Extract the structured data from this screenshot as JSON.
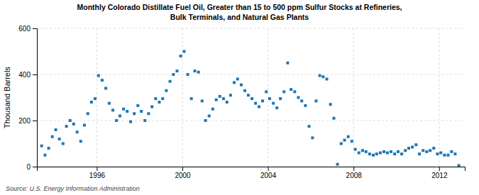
{
  "chart_data": {
    "type": "scatter",
    "title": [
      "Monthly Colorado Distillate Fuel Oil, Greater than 15 to 500 ppm Sulfur Stocks at Refineries,",
      "Bulk Terminals, and Natural Gas Plants"
    ],
    "y_label": "Thousand Barrels",
    "annotations": [
      "Source: U.S. Energy Information Administration"
    ],
    "marker": "square",
    "grid": true,
    "xlim": [
      1993.2,
      2013.2
    ],
    "xticks": [
      1996,
      2000,
      2004,
      2008,
      2012
    ],
    "ylim": [
      0,
      600
    ],
    "yticks": [
      0,
      200,
      400,
      600
    ],
    "x": [
      1993.42,
      1993.58,
      1993.75,
      1993.92,
      1994.08,
      1994.25,
      1994.42,
      1994.58,
      1994.75,
      1994.92,
      1995.08,
      1995.25,
      1995.42,
      1995.58,
      1995.75,
      1995.92,
      1996.08,
      1996.25,
      1996.42,
      1996.58,
      1996.75,
      1996.92,
      1997.08,
      1997.25,
      1997.42,
      1997.58,
      1997.75,
      1997.92,
      1998.08,
      1998.25,
      1998.42,
      1998.58,
      1998.75,
      1998.92,
      1999.08,
      1999.25,
      1999.42,
      1999.58,
      1999.75,
      1999.92,
      2000.08,
      2000.25,
      2000.42,
      2000.58,
      2000.75,
      2000.92,
      2001.08,
      2001.25,
      2001.42,
      2001.58,
      2001.75,
      2001.92,
      2002.08,
      2002.25,
      2002.42,
      2002.58,
      2002.75,
      2002.92,
      2003.08,
      2003.25,
      2003.42,
      2003.58,
      2003.75,
      2003.92,
      2004.08,
      2004.25,
      2004.42,
      2004.58,
      2004.75,
      2004.92,
      2005.08,
      2005.25,
      2005.42,
      2005.58,
      2005.75,
      2005.92,
      2006.08,
      2006.25,
      2006.42,
      2006.58,
      2006.75,
      2006.92,
      2007.08,
      2007.25,
      2007.42,
      2007.58,
      2007.75,
      2007.92,
      2008.08,
      2008.25,
      2008.42,
      2008.58,
      2008.75,
      2008.92,
      2009.08,
      2009.25,
      2009.42,
      2009.58,
      2009.75,
      2009.92,
      2010.08,
      2010.25,
      2010.42,
      2010.58,
      2010.75,
      2010.92,
      2011.08,
      2011.25,
      2011.42,
      2011.58,
      2011.75,
      2011.92,
      2012.08,
      2012.25,
      2012.42,
      2012.58,
      2012.75,
      2012.92
    ],
    "values": [
      90,
      50,
      80,
      130,
      160,
      120,
      100,
      175,
      200,
      185,
      150,
      110,
      180,
      230,
      280,
      295,
      395,
      375,
      340,
      275,
      245,
      200,
      220,
      250,
      240,
      195,
      230,
      265,
      240,
      200,
      230,
      260,
      295,
      280,
      295,
      330,
      370,
      400,
      415,
      480,
      500,
      400,
      295,
      415,
      410,
      285,
      200,
      220,
      250,
      290,
      305,
      295,
      280,
      310,
      365,
      380,
      355,
      330,
      310,
      295,
      275,
      260,
      285,
      325,
      295,
      275,
      255,
      295,
      325,
      450,
      335,
      325,
      300,
      285,
      265,
      175,
      125,
      285,
      395,
      390,
      380,
      270,
      210,
      10,
      100,
      115,
      130,
      110,
      75,
      60,
      70,
      65,
      55,
      50,
      55,
      60,
      65,
      60,
      65,
      55,
      65,
      55,
      70,
      80,
      85,
      95,
      55,
      70,
      65,
      70,
      80,
      55,
      60,
      50,
      50,
      65,
      55,
      5
    ]
  }
}
